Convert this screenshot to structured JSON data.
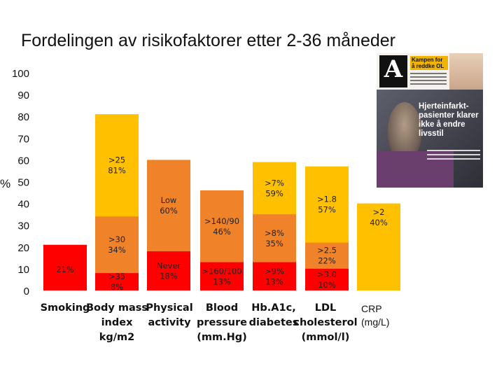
{
  "title": "Fordelingen av risikofaktorer etter 2-36 måneder",
  "crp_label": {
    "line1": "CRP",
    "line2": "(mg/L)"
  },
  "newspaper": {
    "logo": "A",
    "teaser": "Kampen for å reddke OL",
    "headline": "Hjerteinfarkt-pasienter klarer ikke å endre livsstil"
  },
  "colors": {
    "yellow": "#FFC000",
    "orange": "#F0822A",
    "red": "#FF0000"
  },
  "chart_data": {
    "type": "bar",
    "stacking": "overlay",
    "ylabel": "%",
    "ylim": [
      0,
      100
    ],
    "yticks": [
      0,
      10,
      20,
      30,
      40,
      50,
      60,
      70,
      80,
      90,
      100
    ],
    "categories": [
      [
        "Smoking"
      ],
      [
        "Body mass",
        "index",
        "kg/m2"
      ],
      [
        "Physical",
        "activity"
      ],
      [
        "Blood",
        "pressure",
        "(mm.Hg)"
      ],
      [
        "Hb.A1c,",
        "diabetes"
      ],
      [
        "LDL",
        "cholesterol",
        "(mmol/l)"
      ],
      [
        "CRP",
        "(mg/L)"
      ]
    ],
    "bars": [
      {
        "segments": [
          {
            "value": 21,
            "color": "red",
            "label": [
              "21%"
            ]
          }
        ]
      },
      {
        "segments": [
          {
            "value": 81,
            "color": "yellow",
            "label": [
              ">25",
              "81%"
            ]
          },
          {
            "value": 34,
            "color": "orange",
            "label": [
              ">30",
              "34%"
            ]
          },
          {
            "value": 8,
            "color": "red",
            "label": [
              ">35",
              "8%"
            ]
          }
        ]
      },
      {
        "segments": [
          {
            "value": 60,
            "color": "orange",
            "label": [
              "Low",
              "60%"
            ]
          },
          {
            "value": 18,
            "color": "red",
            "label": [
              "Never",
              "18%"
            ]
          }
        ]
      },
      {
        "segments": [
          {
            "value": 46,
            "color": "orange",
            "label": [
              ">140/90",
              "46%"
            ]
          },
          {
            "value": 13,
            "color": "red",
            "label": [
              ">160/100",
              "13%"
            ]
          }
        ]
      },
      {
        "segments": [
          {
            "value": 59,
            "color": "yellow",
            "label": [
              ">7%",
              "59%"
            ]
          },
          {
            "value": 35,
            "color": "orange",
            "label": [
              ">8%",
              "35%"
            ]
          },
          {
            "value": 13,
            "color": "red",
            "label": [
              ">9%",
              "13%"
            ]
          }
        ]
      },
      {
        "segments": [
          {
            "value": 57,
            "color": "yellow",
            "label": [
              ">1.8",
              "57%"
            ]
          },
          {
            "value": 22,
            "color": "orange",
            "label": [
              ">2.5",
              "22%"
            ]
          },
          {
            "value": 10,
            "color": "red",
            "label": [
              ">3.0",
              "10%"
            ]
          }
        ]
      },
      {
        "segments": [
          {
            "value": 40,
            "color": "yellow",
            "label": [
              ">2",
              "40%"
            ]
          }
        ]
      }
    ]
  }
}
